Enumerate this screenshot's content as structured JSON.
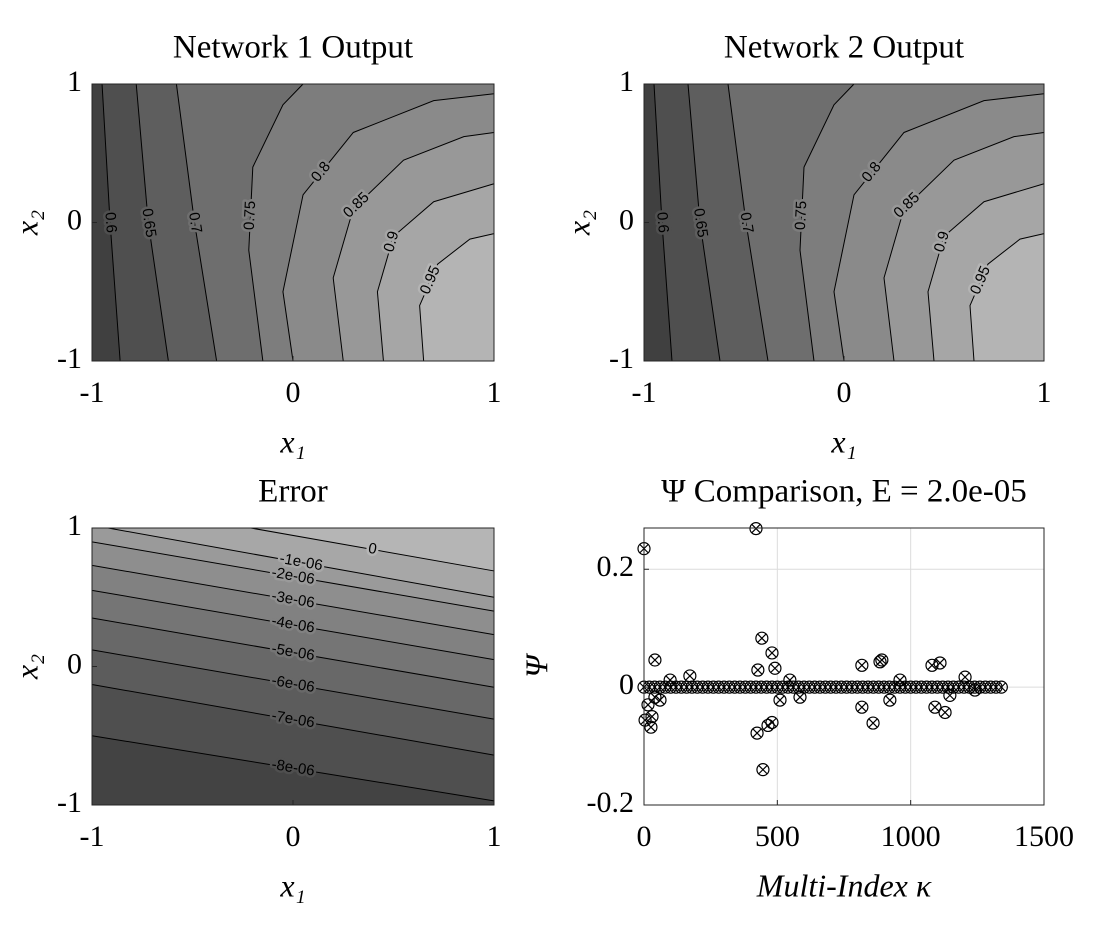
{
  "chart_data": [
    {
      "type": "contour",
      "title": "Network 1 Output",
      "x_label": "x₁",
      "y_label": "x₂",
      "xlim": [
        -1,
        1
      ],
      "ylim": [
        -1,
        1
      ],
      "xticks": [
        -1,
        0,
        1
      ],
      "yticks": [
        -1,
        0,
        1
      ],
      "fill_toward": "right",
      "line_color": "#000000",
      "fill_colors": [
        "#404040",
        "#4f4f4f",
        "#5e5e5e",
        "#6e6e6e",
        "#7d7d7d",
        "#8a8a8a",
        "#989898",
        "#a6a6a6",
        "#b4b4b4"
      ],
      "contours": [
        {
          "level": 0.6,
          "x": [
            -0.86,
            -0.91,
            -0.95
          ],
          "y": [
            -1,
            0,
            1
          ]
        },
        {
          "level": 0.65,
          "x": [
            -0.62,
            -0.72,
            -0.78
          ],
          "y": [
            -1,
            0,
            1
          ]
        },
        {
          "level": 0.7,
          "x": [
            -0.38,
            -0.49,
            -0.58
          ],
          "y": [
            -1,
            0,
            1
          ]
        },
        {
          "level": 0.75,
          "x": [
            -0.15,
            -0.22,
            -0.2,
            -0.05,
            0.05
          ],
          "y": [
            -1,
            -0.2,
            0.4,
            0.85,
            1
          ]
        },
        {
          "level": 0.8,
          "x": [
            0,
            -0.05,
            0.05,
            0.3,
            0.7,
            1
          ],
          "y": [
            -1,
            -0.5,
            0.2,
            0.65,
            0.88,
            0.93
          ]
        },
        {
          "level": 0.85,
          "x": [
            0.25,
            0.2,
            0.3,
            0.55,
            0.85,
            1
          ],
          "y": [
            -1,
            -0.4,
            0.1,
            0.45,
            0.62,
            0.65
          ]
        },
        {
          "level": 0.9,
          "x": [
            0.45,
            0.42,
            0.5,
            0.7,
            1
          ],
          "y": [
            -1,
            -0.5,
            -0.1,
            0.15,
            0.28
          ]
        },
        {
          "level": 0.95,
          "x": [
            0.65,
            0.63,
            0.72,
            0.88,
            1
          ],
          "y": [
            -1,
            -0.6,
            -0.3,
            -0.12,
            -0.08
          ]
        }
      ]
    },
    {
      "type": "contour",
      "title": "Network 2 Output",
      "x_label": "x₁",
      "y_label": "x₂",
      "xlim": [
        -1,
        1
      ],
      "ylim": [
        -1,
        1
      ],
      "xticks": [
        -1,
        0,
        1
      ],
      "yticks": [
        -1,
        0,
        1
      ],
      "fill_toward": "right",
      "line_color": "#000000",
      "fill_colors": [
        "#404040",
        "#4f4f4f",
        "#5e5e5e",
        "#6e6e6e",
        "#7d7d7d",
        "#8a8a8a",
        "#989898",
        "#a6a6a6",
        "#b4b4b4"
      ],
      "contours": [
        {
          "level": 0.6,
          "x": [
            -0.86,
            -0.91,
            -0.95
          ],
          "y": [
            -1,
            0,
            1
          ]
        },
        {
          "level": 0.65,
          "x": [
            -0.62,
            -0.72,
            -0.78
          ],
          "y": [
            -1,
            0,
            1
          ]
        },
        {
          "level": 0.7,
          "x": [
            -0.38,
            -0.49,
            -0.58
          ],
          "y": [
            -1,
            0,
            1
          ]
        },
        {
          "level": 0.75,
          "x": [
            -0.15,
            -0.22,
            -0.2,
            -0.05,
            0.05
          ],
          "y": [
            -1,
            -0.2,
            0.4,
            0.85,
            1
          ]
        },
        {
          "level": 0.8,
          "x": [
            0,
            -0.05,
            0.05,
            0.3,
            0.7,
            1
          ],
          "y": [
            -1,
            -0.5,
            0.2,
            0.65,
            0.88,
            0.93
          ]
        },
        {
          "level": 0.85,
          "x": [
            0.25,
            0.2,
            0.3,
            0.55,
            0.85,
            1
          ],
          "y": [
            -1,
            -0.4,
            0.1,
            0.45,
            0.62,
            0.65
          ]
        },
        {
          "level": 0.9,
          "x": [
            0.45,
            0.42,
            0.5,
            0.7,
            1
          ],
          "y": [
            -1,
            -0.5,
            -0.1,
            0.15,
            0.28
          ]
        },
        {
          "level": 0.95,
          "x": [
            0.65,
            0.63,
            0.72,
            0.88,
            1
          ],
          "y": [
            -1,
            -0.6,
            -0.3,
            -0.12,
            -0.08
          ]
        }
      ]
    },
    {
      "type": "contour",
      "title": "Error",
      "x_label": "x₁",
      "y_label": "x₂",
      "xlim": [
        -1,
        1
      ],
      "ylim": [
        -1,
        1
      ],
      "xticks": [
        -1,
        0,
        1
      ],
      "yticks": [
        -1,
        0,
        1
      ],
      "fill_toward": "top",
      "line_color": "#000000",
      "fill_colors": [
        "#434343",
        "#4f4f4f",
        "#5c5c5c",
        "#686868",
        "#757575",
        "#818181",
        "#8e8e8e",
        "#9a9a9a",
        "#a7a7a7",
        "#b5b5b5"
      ],
      "contours": [
        {
          "level": {
            "value": -8e-06,
            "label": "-8e-06"
          },
          "x": [
            -1,
            1
          ],
          "y": [
            -0.5,
            -0.97
          ]
        },
        {
          "level": {
            "value": -7e-06,
            "label": "-7e-06"
          },
          "x": [
            -1,
            1
          ],
          "y": [
            -0.13,
            -0.64
          ]
        },
        {
          "level": {
            "value": -6e-06,
            "label": "-6e-06"
          },
          "x": [
            -1,
            1
          ],
          "y": [
            0.12,
            -0.38
          ]
        },
        {
          "level": {
            "value": -5e-06,
            "label": "-5e-06"
          },
          "x": [
            -1,
            1
          ],
          "y": [
            0.35,
            -0.15
          ]
        },
        {
          "level": {
            "value": -4e-06,
            "label": "-4e-06"
          },
          "x": [
            -1,
            1
          ],
          "y": [
            0.55,
            0.05
          ]
        },
        {
          "level": {
            "value": -3e-06,
            "label": "-3e-06"
          },
          "x": [
            -1,
            1
          ],
          "y": [
            0.73,
            0.23
          ]
        },
        {
          "level": {
            "value": -2e-06,
            "label": "-2e-06"
          },
          "x": [
            -1,
            1
          ],
          "y": [
            0.9,
            0.4
          ]
        },
        {
          "level": {
            "value": -1e-06,
            "label": "-1e-06"
          },
          "x": [
            -0.92,
            1
          ],
          "y": [
            1,
            0.5
          ]
        },
        {
          "level": 0,
          "x": [
            -0.21,
            1
          ],
          "y": [
            1,
            0.69
          ]
        }
      ]
    },
    {
      "type": "scatter",
      "title": "Ψ Comparison, E = 2.0e-05",
      "x_label": "Multi-Index κ",
      "y_label": "Ψ",
      "xlim": [
        0,
        1500
      ],
      "ylim": [
        -0.2,
        0.27
      ],
      "xticks": [
        0,
        500,
        1000,
        1500
      ],
      "yticks": [
        -0.2,
        0,
        0.2
      ],
      "grid": true,
      "color": "#000000",
      "x": [
        0,
        20,
        40,
        60,
        80,
        100,
        120,
        140,
        160,
        180,
        200,
        220,
        240,
        260,
        280,
        300,
        320,
        340,
        360,
        380,
        400,
        420,
        440,
        460,
        480,
        500,
        520,
        540,
        560,
        580,
        600,
        620,
        640,
        660,
        680,
        700,
        720,
        740,
        760,
        780,
        800,
        820,
        840,
        860,
        880,
        900,
        920,
        940,
        960,
        980,
        1000,
        1020,
        1040,
        1060,
        1080,
        1100,
        1120,
        1140,
        1160,
        1180,
        1200,
        1220,
        1240,
        1260,
        1280,
        1300,
        1320,
        1340,
        0,
        4,
        30,
        26,
        41,
        15,
        60,
        98,
        172,
        41,
        420,
        424,
        442,
        446,
        465,
        480,
        480,
        427,
        491,
        510,
        547,
        585,
        817,
        817,
        859,
        885,
        892,
        922,
        960,
        1080,
        1091,
        1110,
        1129,
        1147,
        1204,
        1241
      ],
      "y": [
        0,
        0,
        0,
        0,
        0,
        0,
        0,
        0,
        0,
        0,
        0,
        0,
        0,
        0,
        0,
        0,
        0,
        0,
        0,
        0,
        0,
        0,
        0,
        0,
        0,
        0,
        0,
        0,
        0,
        0,
        0,
        0,
        0,
        0,
        0,
        0,
        0,
        0,
        0,
        0,
        0,
        0,
        0,
        0,
        0,
        0,
        0,
        0,
        0,
        0,
        0,
        0,
        0,
        0,
        0,
        0,
        0,
        0,
        0,
        0,
        0,
        0,
        0,
        0,
        0,
        0,
        0,
        0,
        0.235,
        -0.056,
        -0.05,
        -0.068,
        0.046,
        -0.03,
        -0.022,
        0.012,
        0.019,
        -0.017,
        0.269,
        -0.078,
        0.083,
        -0.14,
        -0.065,
        -0.06,
        0.058,
        0.029,
        0.032,
        -0.022,
        0.012,
        -0.017,
        0.037,
        -0.034,
        -0.061,
        0.043,
        0.046,
        -0.022,
        0.012,
        0.037,
        -0.034,
        0.041,
        -0.043,
        -0.014,
        0.017,
        -0.005
      ]
    }
  ]
}
